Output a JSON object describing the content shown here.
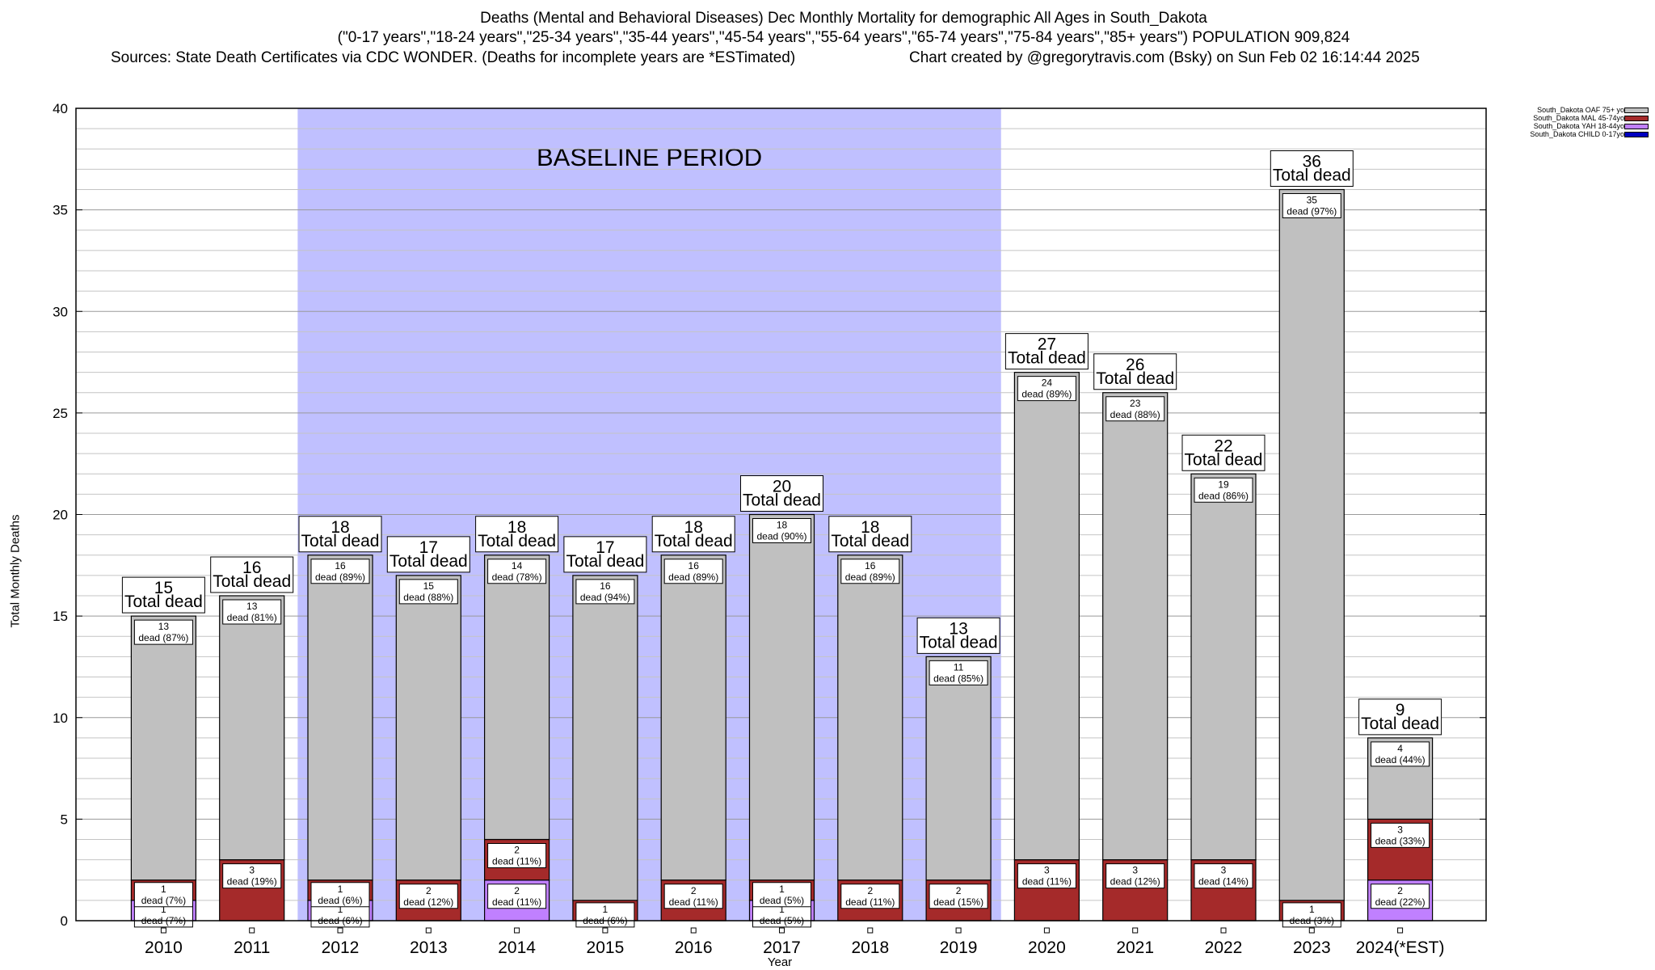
{
  "title": {
    "line1": "Deaths (Mental and Behavioral Diseases) Dec Monthly Mortality for demographic All Ages in South_Dakota",
    "line2": "(\"0-17 years\",\"18-24 years\",\"25-34 years\",\"35-44 years\",\"45-54 years\",\"55-64 years\",\"65-74 years\",\"75-84 years\",\"85+ years\") POPULATION 909,824",
    "line3_left": "Sources: State Death Certificates via CDC WONDER. (Deaths for incomplete years are *ESTimated)",
    "line3_right": "Chart created by @gregorytravis.com (Bsky) on Sun Feb 02 16:14:44 2025"
  },
  "legend": [
    {
      "label": "South_Dakota OAF 75+ yo",
      "color": "#c0c0c0"
    },
    {
      "label": "South_Dakota MAL 45-74yo",
      "color": "#a52a2a"
    },
    {
      "label": "South_Dakota YAH 18-44yo",
      "color": "#c080ff"
    },
    {
      "label": "South_Dakota CHILD 0-17yo",
      "color": "#0000c0"
    }
  ],
  "chart_data": {
    "type": "bar",
    "stacked": true,
    "xlabel": "Year",
    "ylabel": "Total Monthly Deaths",
    "ylim": [
      0,
      40
    ],
    "yticks": [
      0,
      5,
      10,
      15,
      20,
      25,
      30,
      35,
      40
    ],
    "grid": true,
    "legend_position": "top-right",
    "baseline_period": {
      "label": "BASELINE PERIOD",
      "from": "2012",
      "to": "2019",
      "color": "#c0c0ff"
    },
    "total_label_suffix": "Total dead",
    "categories": [
      "2010",
      "2011",
      "2012",
      "2013",
      "2014",
      "2015",
      "2016",
      "2017",
      "2018",
      "2019",
      "2020",
      "2021",
      "2022",
      "2023",
      "2024(*EST)"
    ],
    "totals": [
      15,
      16,
      18,
      17,
      18,
      17,
      18,
      20,
      18,
      13,
      27,
      26,
      22,
      36,
      9
    ],
    "series": [
      {
        "name": "South_Dakota YAH 18-44yo",
        "color": "#c080ff",
        "values": [
          1,
          0,
          1,
          0,
          2,
          0,
          0,
          1,
          0,
          0,
          0,
          0,
          0,
          0,
          2
        ],
        "labels": [
          "1\ndead (7%)",
          "",
          "1\ndead (6%)",
          "",
          "2\ndead (11%)",
          "",
          "",
          "1\ndead (5%)",
          "",
          "",
          "",
          "",
          "",
          "",
          "2\ndead (22%)"
        ]
      },
      {
        "name": "South_Dakota MAL 45-74yo",
        "color": "#a52a2a",
        "values": [
          1,
          3,
          1,
          2,
          2,
          1,
          2,
          1,
          2,
          2,
          3,
          3,
          3,
          1,
          3
        ],
        "labels": [
          "1\ndead (7%)",
          "3\ndead (19%)",
          "1\ndead (6%)",
          "2\ndead (12%)",
          "2\ndead (11%)",
          "1\ndead (6%)",
          "2\ndead (11%)",
          "1\ndead (5%)",
          "2\ndead (11%)",
          "2\ndead (15%)",
          "3\ndead (11%)",
          "3\ndead (12%)",
          "3\ndead (14%)",
          "1\ndead (3%)",
          "3\ndead (33%)"
        ]
      },
      {
        "name": "South_Dakota OAF 75+ yo",
        "color": "#c0c0c0",
        "values": [
          13,
          13,
          16,
          15,
          14,
          16,
          16,
          18,
          16,
          11,
          24,
          23,
          19,
          35,
          4
        ],
        "labels": [
          "13\ndead (87%)",
          "13\ndead (81%)",
          "16\ndead (89%)",
          "15\ndead (88%)",
          "14\ndead (78%)",
          "16\ndead (94%)",
          "16\ndead (89%)",
          "18\ndead (90%)",
          "16\ndead (89%)",
          "11\ndead (85%)",
          "24\ndead (89%)",
          "23\ndead (88%)",
          "19\ndead (86%)",
          "35\ndead (97%)",
          "4\ndead (44%)"
        ]
      }
    ]
  }
}
